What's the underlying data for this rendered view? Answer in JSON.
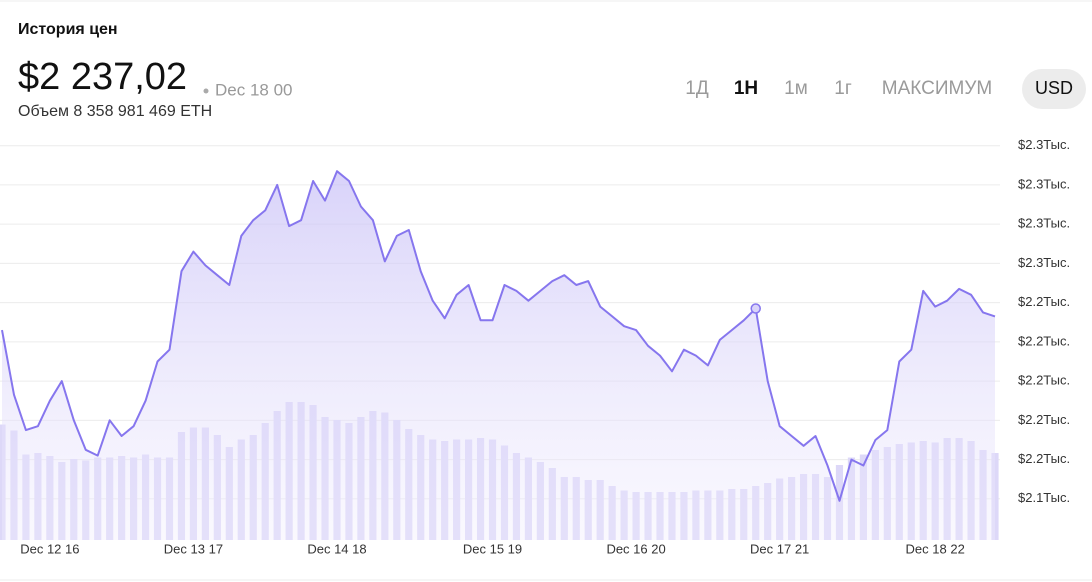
{
  "header": {
    "title": "История цен",
    "price": "$2 237,02",
    "timestamp": "Dec 18 00",
    "volume": "Объем 8 358 981 469 ETH"
  },
  "range_buttons": [
    "1Д",
    "1Н",
    "1м",
    "1г",
    "МАКСИМУМ"
  ],
  "active_range_index": 1,
  "currency_button": "USD",
  "chart_data": {
    "type": "area",
    "categories": [
      null,
      null,
      null,
      null,
      "Dec 12 16",
      null,
      null,
      null,
      null,
      null,
      null,
      null,
      null,
      null,
      null,
      null,
      "Dec 13 17",
      null,
      null,
      null,
      null,
      null,
      null,
      null,
      null,
      null,
      null,
      null,
      "Dec 14 18",
      null,
      null,
      null,
      null,
      null,
      null,
      null,
      null,
      null,
      null,
      null,
      null,
      "Dec 15 19",
      null,
      null,
      null,
      null,
      null,
      null,
      null,
      null,
      null,
      null,
      null,
      "Dec 16 20",
      null,
      null,
      null,
      null,
      null,
      null,
      null,
      null,
      null,
      null,
      null,
      "Dec 17 21",
      null,
      null,
      null,
      null,
      null,
      null,
      null,
      null,
      null,
      null,
      null,
      null,
      "Dec 18 22",
      null,
      null,
      null,
      null,
      null
    ],
    "values": [
      2226,
      2193,
      2175,
      2177,
      2190,
      2200,
      2180,
      2165,
      2162,
      2180,
      2172,
      2177,
      2190,
      2210,
      2216,
      2256,
      2266,
      2259,
      2254,
      2249,
      2274,
      2282,
      2287,
      2300,
      2279,
      2282,
      2302,
      2292,
      2307,
      2302,
      2289,
      2282,
      2261,
      2274,
      2277,
      2256,
      2241,
      2232,
      2244,
      2249,
      2231,
      2231,
      2249,
      2246,
      2241,
      2246,
      2251,
      2254,
      2249,
      2251,
      2238,
      2233,
      2228,
      2226,
      2218,
      2213,
      2205,
      2216,
      2213,
      2208,
      2221,
      2226,
      2231,
      2237,
      2200,
      2177,
      2172,
      2167,
      2172,
      2157,
      2139,
      2160,
      2157,
      2170,
      2175,
      2210,
      2216,
      2246,
      2238,
      2241,
      2247,
      2244,
      2235,
      2233
    ],
    "color": "#8676ee",
    "marker_index": 63,
    "volume": {
      "color": "#ddd8f8",
      "ylim": [
        0,
        100
      ],
      "values": [
        77,
        73,
        57,
        58,
        56,
        52,
        54,
        53,
        55,
        55,
        56,
        55,
        57,
        55,
        55,
        72,
        75,
        75,
        70,
        62,
        67,
        70,
        78,
        86,
        92,
        92,
        90,
        82,
        80,
        78,
        82,
        86,
        85,
        80,
        74,
        70,
        67,
        66,
        67,
        67,
        68,
        67,
        63,
        58,
        55,
        52,
        48,
        42,
        42,
        40,
        40,
        36,
        33,
        32,
        32,
        32,
        32,
        32,
        33,
        33,
        33,
        34,
        34,
        36,
        38,
        41,
        42,
        44,
        44,
        42,
        50,
        55,
        57,
        60,
        62,
        64,
        65,
        66,
        65,
        68,
        68,
        66,
        60,
        58
      ]
    },
    "ylim": [
      2119,
      2328
    ],
    "yticks": [
      {
        "value": 2320,
        "label": "$2.3Тыс."
      },
      {
        "value": 2300,
        "label": "$2.3Тыс."
      },
      {
        "value": 2280,
        "label": "$2.3Тыс."
      },
      {
        "value": 2260,
        "label": "$2.3Тыс."
      },
      {
        "value": 2240,
        "label": "$2.2Тыс."
      },
      {
        "value": 2220,
        "label": "$2.2Тыс."
      },
      {
        "value": 2200,
        "label": "$2.2Тыс."
      },
      {
        "value": 2180,
        "label": "$2.2Тыс."
      },
      {
        "value": 2160,
        "label": "$2.2Тыс."
      },
      {
        "value": 2140,
        "label": "$2.1Тыс."
      }
    ],
    "grid": true
  }
}
